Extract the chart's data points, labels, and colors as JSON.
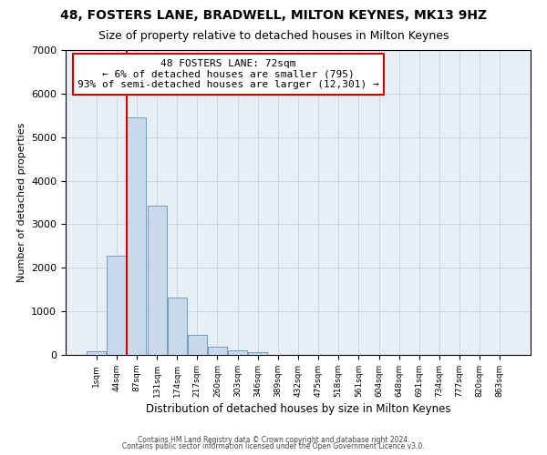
{
  "title": "48, FOSTERS LANE, BRADWELL, MILTON KEYNES, MK13 9HZ",
  "subtitle": "Size of property relative to detached houses in Milton Keynes",
  "xlabel": "Distribution of detached houses by size in Milton Keynes",
  "ylabel": "Number of detached properties",
  "footnote1": "Contains HM Land Registry data © Crown copyright and database right 2024.",
  "footnote2": "Contains public sector information licensed under the Open Government Licence v3.0.",
  "bar_labels": [
    "1sqm",
    "44sqm",
    "87sqm",
    "131sqm",
    "174sqm",
    "217sqm",
    "260sqm",
    "303sqm",
    "346sqm",
    "389sqm",
    "432sqm",
    "475sqm",
    "518sqm",
    "561sqm",
    "604sqm",
    "648sqm",
    "691sqm",
    "734sqm",
    "777sqm",
    "820sqm",
    "863sqm"
  ],
  "bar_values": [
    75,
    2280,
    5460,
    3420,
    1320,
    460,
    190,
    95,
    55,
    0,
    0,
    0,
    0,
    0,
    0,
    0,
    0,
    0,
    0,
    0,
    0
  ],
  "bar_color": "#c9d9eb",
  "bar_edge_color": "#6b9ebe",
  "annotation_line_color": "#cc0000",
  "annotation_box_text_line1": "48 FOSTERS LANE: 72sqm",
  "annotation_box_text_line2": "← 6% of detached houses are smaller (795)",
  "annotation_box_text_line3": "93% of semi-detached houses are larger (12,301) →",
  "annotation_box_color": "#ffffff",
  "annotation_box_edge_color": "#cc0000",
  "ylim": [
    0,
    7000
  ],
  "ax_facecolor": "#e8eef5",
  "background_color": "#ffffff",
  "grid_color": "#c8d0dc",
  "title_fontsize": 10,
  "subtitle_fontsize": 9
}
